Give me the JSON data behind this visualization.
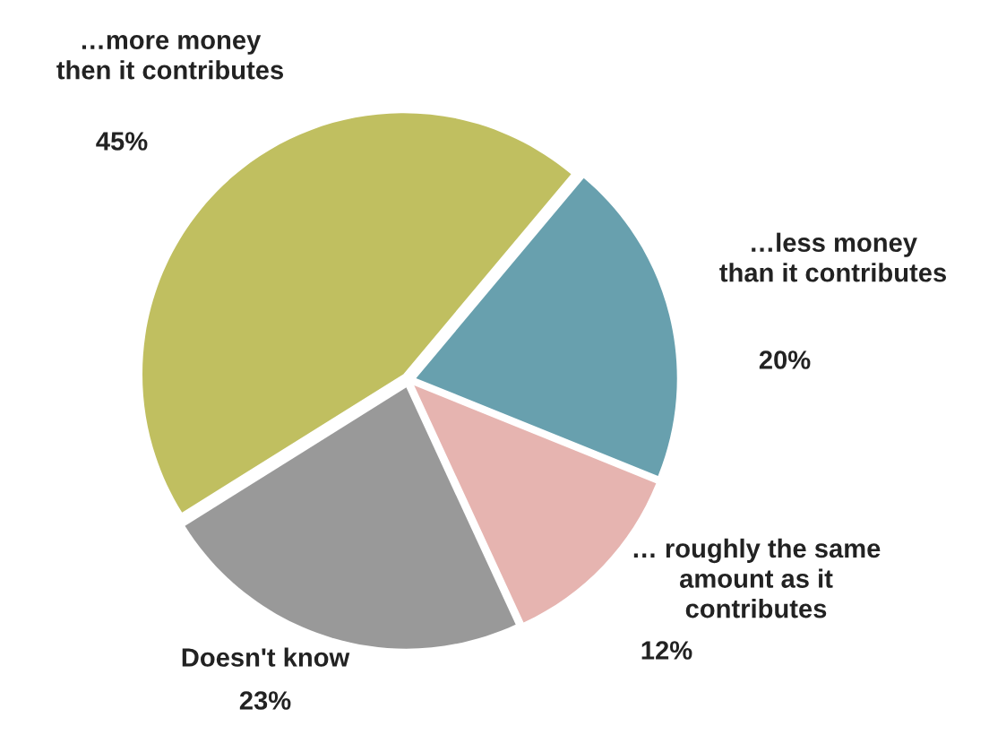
{
  "chart_data": {
    "type": "pie",
    "categories": [
      "…less money\nthan it contributes",
      "… roughly the same\namount as it\ncontributes",
      "Doesn't know",
      "…more money\nthen it contributes"
    ],
    "values": [
      20,
      12,
      23,
      45
    ],
    "colors": [
      "#68a0ae",
      "#e6b4b0",
      "#999999",
      "#c0bf60"
    ],
    "value_labels": [
      "20%",
      "12%",
      "23%",
      "45%"
    ]
  }
}
